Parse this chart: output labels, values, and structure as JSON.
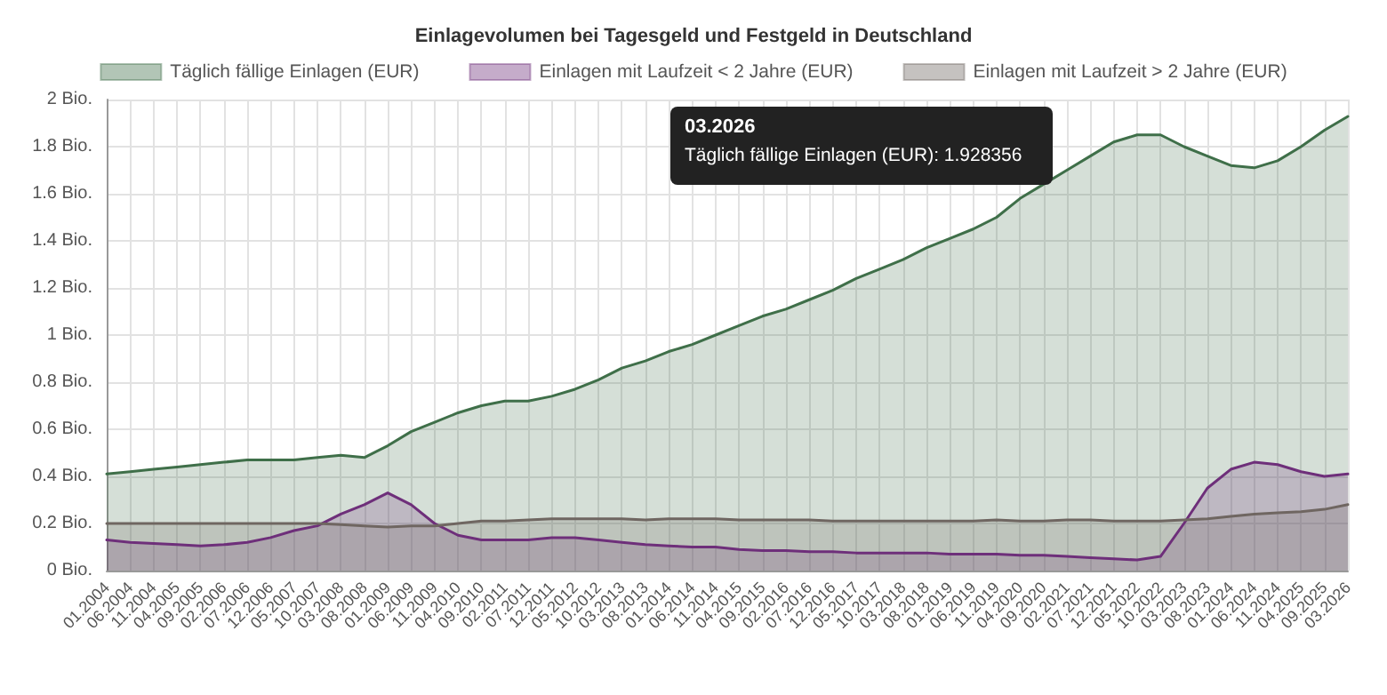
{
  "chart_data": {
    "type": "area",
    "title": "Einlagevolumen bei Tagesgeld und Festgeld in Deutschland",
    "categories": [
      "01.2004",
      "06.2004",
      "11.2004",
      "04.2005",
      "09.2005",
      "02.2006",
      "07.2006",
      "12.2006",
      "05.2007",
      "10.2007",
      "03.2008",
      "08.2008",
      "01.2009",
      "06.2009",
      "11.2009",
      "04.2010",
      "09.2010",
      "02.2011",
      "07.2011",
      "12.2011",
      "05.2012",
      "10.2012",
      "03.2013",
      "08.2013",
      "01.2014",
      "06.2014",
      "11.2014",
      "04.2015",
      "09.2015",
      "02.2016",
      "07.2016",
      "12.2016",
      "05.2017",
      "10.2017",
      "03.2018",
      "08.2018",
      "01.2019",
      "06.2019",
      "11.2019",
      "04.2020",
      "09.2020",
      "02.2021",
      "07.2021",
      "12.2021",
      "05.2022",
      "10.2022",
      "03.2023",
      "08.2023",
      "01.2024",
      "06.2024",
      "11.2024",
      "04.2025",
      "09.2025",
      "03.2026"
    ],
    "series": [
      {
        "name": "Täglich fällige Einlagen (EUR)",
        "color": "#3f6f49",
        "values": [
          0.41,
          0.42,
          0.43,
          0.44,
          0.45,
          0.46,
          0.47,
          0.47,
          0.47,
          0.48,
          0.49,
          0.48,
          0.53,
          0.59,
          0.63,
          0.67,
          0.7,
          0.72,
          0.72,
          0.74,
          0.77,
          0.81,
          0.86,
          0.89,
          0.93,
          0.96,
          1.0,
          1.04,
          1.08,
          1.11,
          1.15,
          1.19,
          1.24,
          1.28,
          1.32,
          1.37,
          1.41,
          1.45,
          1.5,
          1.58,
          1.64,
          1.7,
          1.76,
          1.82,
          1.85,
          1.85,
          1.8,
          1.76,
          1.72,
          1.71,
          1.74,
          1.8,
          1.87,
          1.928356
        ]
      },
      {
        "name": "Einlagen mit Laufzeit < 2 Jahre (EUR)",
        "color": "#6e2f7a",
        "values": [
          0.13,
          0.12,
          0.115,
          0.11,
          0.105,
          0.11,
          0.12,
          0.14,
          0.17,
          0.19,
          0.24,
          0.28,
          0.33,
          0.28,
          0.2,
          0.15,
          0.13,
          0.13,
          0.13,
          0.14,
          0.14,
          0.13,
          0.12,
          0.11,
          0.105,
          0.1,
          0.1,
          0.09,
          0.085,
          0.085,
          0.08,
          0.08,
          0.075,
          0.075,
          0.075,
          0.075,
          0.07,
          0.07,
          0.07,
          0.065,
          0.065,
          0.06,
          0.055,
          0.05,
          0.045,
          0.06,
          0.2,
          0.35,
          0.43,
          0.46,
          0.45,
          0.42,
          0.4,
          0.41
        ]
      },
      {
        "name": "Einlagen mit Laufzeit > 2 Jahre (EUR)",
        "color": "#6f6661",
        "values": [
          0.2,
          0.2,
          0.2,
          0.2,
          0.2,
          0.2,
          0.2,
          0.2,
          0.2,
          0.2,
          0.195,
          0.19,
          0.185,
          0.19,
          0.19,
          0.2,
          0.21,
          0.21,
          0.215,
          0.22,
          0.22,
          0.22,
          0.22,
          0.215,
          0.22,
          0.22,
          0.22,
          0.215,
          0.215,
          0.215,
          0.215,
          0.21,
          0.21,
          0.21,
          0.21,
          0.21,
          0.21,
          0.21,
          0.215,
          0.21,
          0.21,
          0.215,
          0.215,
          0.21,
          0.21,
          0.21,
          0.215,
          0.22,
          0.23,
          0.24,
          0.245,
          0.25,
          0.26,
          0.28
        ]
      }
    ],
    "ylim": [
      0,
      2
    ],
    "yticks": [
      {
        "value": 0,
        "label": "0 Bio."
      },
      {
        "value": 0.2,
        "label": "0.2 Bio."
      },
      {
        "value": 0.4,
        "label": "0.4 Bio."
      },
      {
        "value": 0.6,
        "label": "0.6 Bio."
      },
      {
        "value": 0.8,
        "label": "0.8 Bio."
      },
      {
        "value": 1,
        "label": "1 Bio."
      },
      {
        "value": 1.2,
        "label": "1.2 Bio."
      },
      {
        "value": 1.4,
        "label": "1.4 Bio."
      },
      {
        "value": 1.6,
        "label": "1.6 Bio."
      },
      {
        "value": 1.8,
        "label": "1.8 Bio."
      },
      {
        "value": 2,
        "label": "2 Bio."
      }
    ],
    "annotations": [
      "03.2026",
      "Täglich fällige Einlagen (EUR): 1.928356"
    ],
    "grid": true,
    "legend": "top",
    "marker": "none",
    "line_style": "solid"
  }
}
